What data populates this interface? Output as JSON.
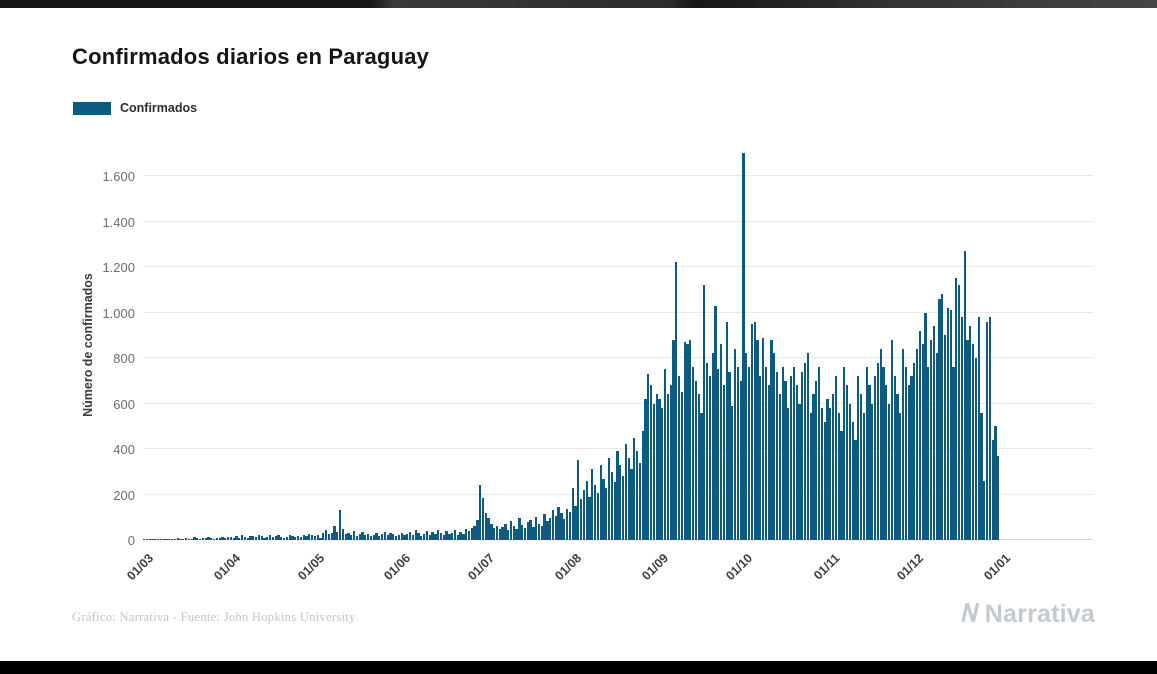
{
  "page": {
    "title": "Confirmados diarios en Paraguay",
    "legend_label": "Confirmados",
    "footer_credit": "Gráfico: Narrativa - Fuente: John Hopkins University",
    "brand": "Narrativa"
  },
  "chart_data": {
    "type": "bar",
    "title": "Confirmados diarios en Paraguay",
    "series_name": "Confirmados",
    "xlabel": "",
    "ylabel": "Número de confirmados",
    "bar_color": "#0f5b80",
    "grid": "horizontal",
    "legend_position": "top-left",
    "ylim": [
      0,
      1736
    ],
    "yticks": [
      0,
      200,
      400,
      600,
      800,
      1000,
      1200,
      1400,
      1600
    ],
    "ytick_labels": [
      "0",
      "200",
      "400",
      "600",
      "800",
      "1.000",
      "1.200",
      "1.400",
      "1.600"
    ],
    "xtick_labels": [
      "01/03",
      "01/04",
      "01/05",
      "01/06",
      "01/07",
      "01/08",
      "01/09",
      "01/10",
      "01/11",
      "01/12",
      "01/01"
    ],
    "xtick_day_index": [
      0,
      31,
      61,
      92,
      122,
      153,
      184,
      214,
      245,
      275,
      306
    ],
    "values": [
      2,
      1,
      1,
      3,
      2,
      4,
      2,
      5,
      3,
      4,
      6,
      3,
      8,
      5,
      4,
      10,
      6,
      5,
      12,
      8,
      6,
      10,
      7,
      12,
      9,
      6,
      11,
      8,
      13,
      10,
      12,
      15,
      11,
      17,
      10,
      21,
      13,
      9,
      16,
      19,
      12,
      24,
      17,
      11,
      15,
      20,
      13,
      18,
      23,
      15,
      10,
      14,
      21,
      16,
      12,
      19,
      15,
      22,
      17,
      25,
      20,
      16,
      24,
      11,
      32,
      44,
      28,
      30,
      62,
      36,
      132,
      48,
      26,
      30,
      22,
      38,
      18,
      27,
      34,
      20,
      28,
      16,
      24,
      31,
      19,
      27,
      35,
      22,
      30,
      26,
      18,
      24,
      32,
      20,
      28,
      36,
      24,
      42,
      30,
      18,
      26,
      38,
      22,
      34,
      28,
      45,
      32,
      20,
      38,
      26,
      30,
      42,
      24,
      36,
      28,
      48,
      40,
      55,
      62,
      90,
      240,
      185,
      120,
      95,
      70,
      55,
      62,
      48,
      58,
      70,
      45,
      82,
      60,
      48,
      95,
      65,
      52,
      78,
      88,
      58,
      102,
      72,
      62,
      115,
      85,
      95,
      130,
      105,
      145,
      118,
      92,
      135,
      125,
      230,
      150,
      350,
      180,
      220,
      260,
      190,
      310,
      240,
      205,
      330,
      270,
      230,
      360,
      300,
      255,
      390,
      330,
      280,
      420,
      360,
      310,
      450,
      390,
      340,
      480,
      620,
      730,
      680,
      600,
      640,
      620,
      580,
      750,
      640,
      680,
      880,
      1220,
      720,
      650,
      870,
      860,
      880,
      760,
      700,
      640,
      560,
      1120,
      780,
      720,
      820,
      1030,
      750,
      860,
      680,
      960,
      740,
      590,
      840,
      760,
      700,
      1700,
      820,
      760,
      950,
      960,
      880,
      720,
      890,
      760,
      680,
      880,
      820,
      740,
      640,
      760,
      700,
      580,
      720,
      760,
      680,
      600,
      740,
      780,
      820,
      560,
      640,
      700,
      760,
      580,
      520,
      620,
      580,
      640,
      720,
      560,
      480,
      760,
      680,
      600,
      520,
      440,
      720,
      640,
      560,
      760,
      680,
      600,
      720,
      780,
      840,
      760,
      680,
      600,
      880,
      720,
      640,
      560,
      840,
      760,
      680,
      720,
      780,
      840,
      920,
      860,
      1000,
      760,
      880,
      940,
      820,
      1060,
      1080,
      900,
      1020,
      1010,
      760,
      1150,
      1120,
      980,
      1270,
      880,
      940,
      860,
      800,
      980,
      560,
      260,
      960,
      980,
      440,
      500,
      370
    ]
  }
}
